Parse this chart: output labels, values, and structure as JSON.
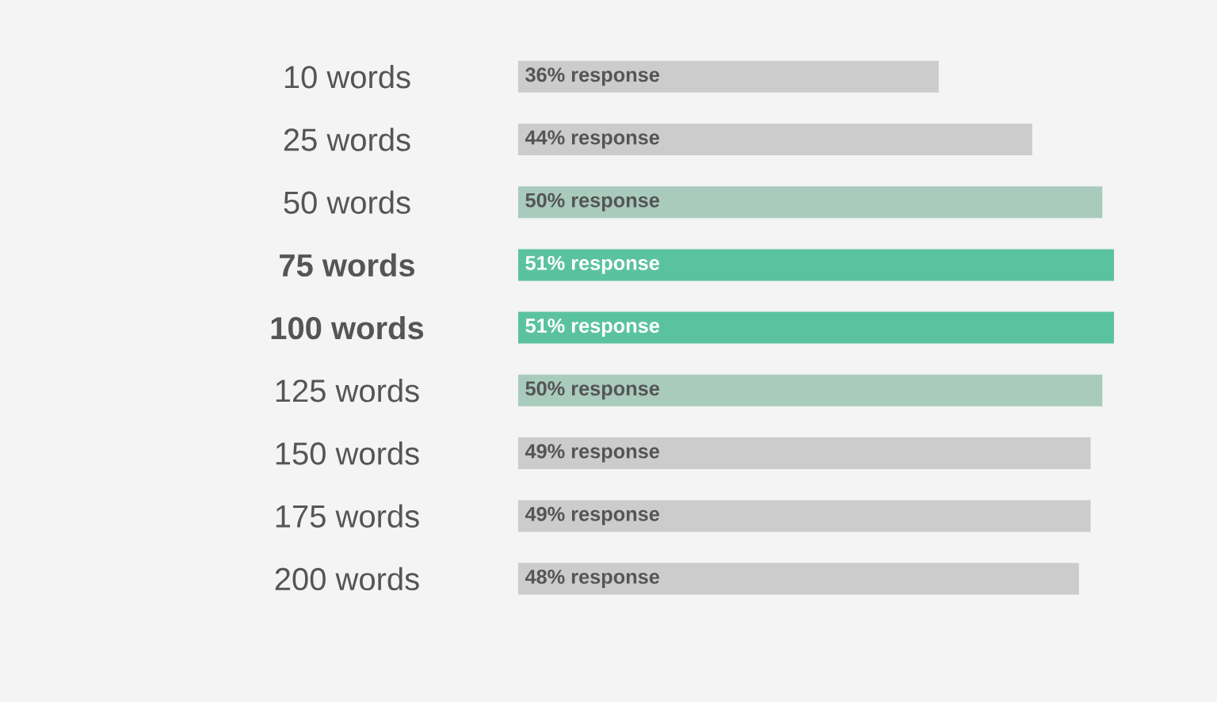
{
  "chart_data": {
    "type": "bar",
    "orientation": "horizontal",
    "categories": [
      "10 words",
      "25 words",
      "50 words",
      "**75 words**",
      "**100 words**",
      "125 words",
      "150 words",
      "175 words",
      "200 words"
    ],
    "values": [
      36,
      44,
      50,
      51,
      51,
      50,
      49,
      49,
      48
    ],
    "value_labels": [
      "36% response",
      "44% response",
      "50% response",
      "51% response",
      "51% response",
      "50% response",
      "49% response",
      "49% response",
      "48% response"
    ],
    "colors": [
      "#cccccc",
      "#cccccc",
      "#a9cbbd",
      "#5bc2a0",
      "#5bc2a0",
      "#a9cbbd",
      "#cccccc",
      "#cccccc",
      "#cccccc"
    ]
  }
}
